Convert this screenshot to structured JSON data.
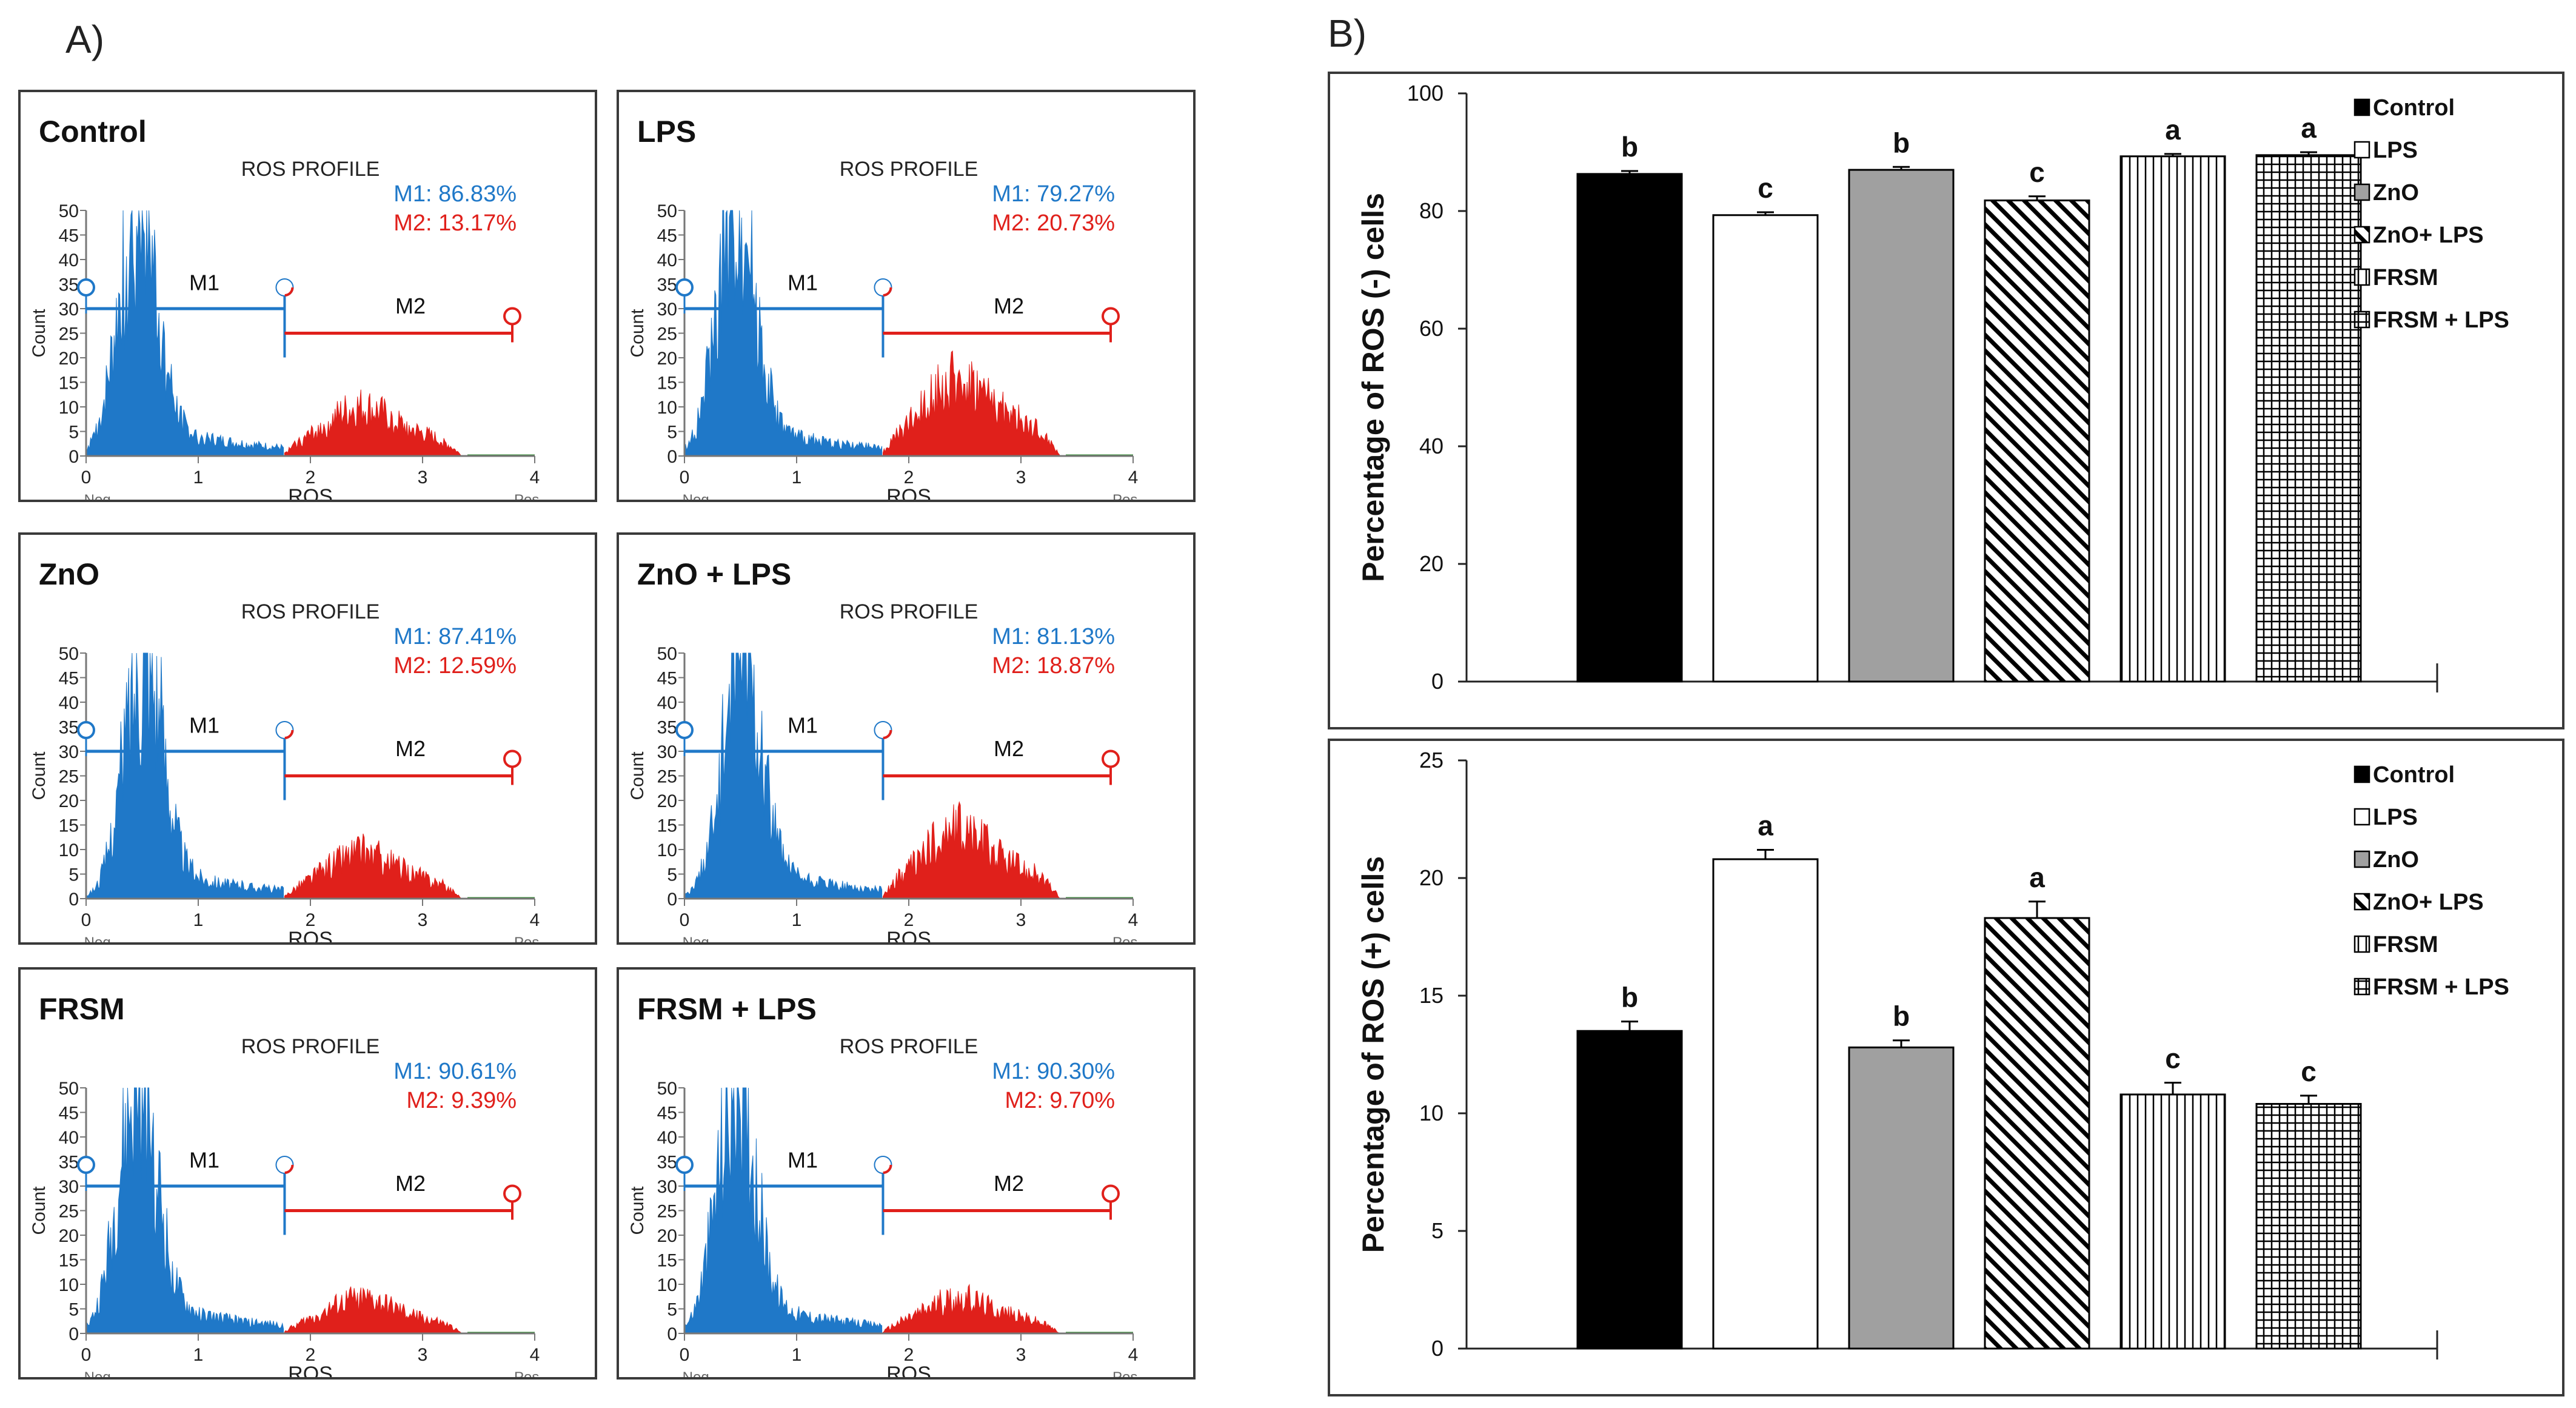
{
  "panel_a_label": "A)",
  "panel_b_label": "B)",
  "hist_common": {
    "plot_title": "ROS PROFILE",
    "xlabel": "ROS",
    "ylabel": "Count",
    "neg_label": "Neg.",
    "pos_label": "Pos.",
    "m1_label": "M1",
    "m2_label": "M2",
    "x_ticks": [
      "0",
      "1",
      "2",
      "3",
      "4"
    ],
    "y_ticks": [
      "0",
      "5",
      "10",
      "15",
      "20",
      "25",
      "30",
      "35",
      "40",
      "45",
      "50"
    ],
    "m1_color": "#1f78c8",
    "m2_color": "#e0201b"
  },
  "chart_data": [
    {
      "type": "area",
      "title": "Control",
      "m1_text": "M1: 86.83%",
      "m2_text": "M2: 13.17%",
      "m1_percent": 86.83,
      "m2_percent": 13.17,
      "peak_x": 0.45,
      "gate_x": 1.77,
      "xlim": [
        0,
        4
      ],
      "ylim": [
        0,
        50
      ]
    },
    {
      "type": "area",
      "title": "LPS",
      "m1_text": "M1: 79.27%",
      "m2_text": "M2: 20.73%",
      "m1_percent": 79.27,
      "m2_percent": 20.73,
      "peak_x": 0.45,
      "gate_x": 1.77,
      "xlim": [
        0,
        4
      ],
      "ylim": [
        0,
        50
      ]
    },
    {
      "type": "area",
      "title": "ZnO",
      "m1_text": "M1: 87.41%",
      "m2_text": "M2: 12.59%",
      "m1_percent": 87.41,
      "m2_percent": 12.59,
      "peak_x": 0.5,
      "gate_x": 1.77,
      "xlim": [
        0,
        4
      ],
      "ylim": [
        0,
        50
      ]
    },
    {
      "type": "area",
      "title": "ZnO + LPS",
      "m1_text": "M1: 81.13%",
      "m2_text": "M2: 18.87%",
      "m1_percent": 81.13,
      "m2_percent": 18.87,
      "peak_x": 0.5,
      "gate_x": 1.77,
      "xlim": [
        0,
        4
      ],
      "ylim": [
        0,
        50
      ]
    },
    {
      "type": "area",
      "title": "FRSM",
      "m1_text": "M1: 90.61%",
      "m2_text": "M2: 9.39%",
      "m1_percent": 90.61,
      "m2_percent": 9.39,
      "peak_x": 0.45,
      "gate_x": 1.77,
      "xlim": [
        0,
        4
      ],
      "ylim": [
        0,
        50
      ]
    },
    {
      "type": "area",
      "title": "FRSM + LPS",
      "m1_text": "M1: 90.30%",
      "m2_text": "M2: 9.70%",
      "m1_percent": 90.3,
      "m2_percent": 9.7,
      "peak_x": 0.45,
      "gate_x": 1.77,
      "xlim": [
        0,
        4
      ],
      "ylim": [
        0,
        50
      ]
    },
    {
      "type": "bar",
      "title": "",
      "ylabel": "Percentage of ROS (-) cells",
      "ylim": [
        0,
        100
      ],
      "y_ticks": [
        "0",
        "20",
        "40",
        "60",
        "80",
        "100"
      ],
      "categories": [
        "Control",
        "LPS",
        "ZnO",
        "ZnO+ LPS",
        "FRSM",
        "FRSM + LPS"
      ],
      "values": [
        86.3,
        79.3,
        87.0,
        81.8,
        89.3,
        89.5
      ],
      "errors": [
        0.5,
        0.5,
        0.5,
        0.7,
        0.4,
        0.5
      ],
      "letters": [
        "b",
        "c",
        "b",
        "c",
        "a",
        "a"
      ],
      "legend_position": "top-right"
    },
    {
      "type": "bar",
      "title": "",
      "ylabel": "Percentage of ROS (+) cells",
      "ylim": [
        0,
        25
      ],
      "y_ticks": [
        "0",
        "5",
        "10",
        "15",
        "20",
        "25"
      ],
      "categories": [
        "Control",
        "LPS",
        "ZnO",
        "ZnO+ LPS",
        "FRSM",
        "FRSM + LPS"
      ],
      "values": [
        13.5,
        20.8,
        12.8,
        18.3,
        10.8,
        10.4
      ],
      "errors": [
        0.4,
        0.4,
        0.3,
        0.7,
        0.5,
        0.35
      ],
      "letters": [
        "b",
        "a",
        "b",
        "a",
        "c",
        "c"
      ],
      "legend_position": "top-right"
    }
  ]
}
